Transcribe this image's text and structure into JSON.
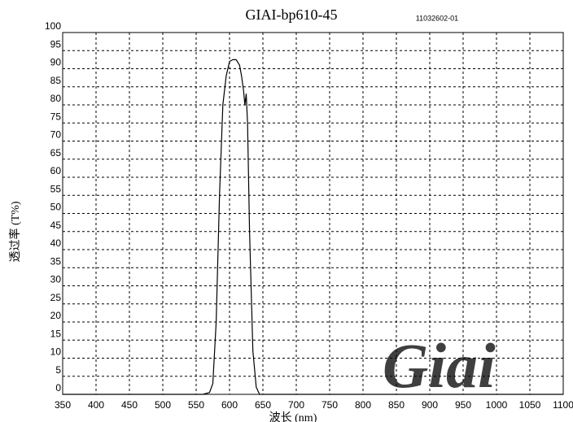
{
  "chart_data": {
    "type": "line",
    "title": "GIAI-bp610-45",
    "subtitle": "11032602-01",
    "x_label": "波长 (nm)",
    "y_label": "透过率 (T%)",
    "watermark": "Giai",
    "x": [
      350,
      560,
      570,
      575,
      580,
      585,
      590,
      595,
      600,
      605,
      610,
      615,
      618,
      621,
      623,
      625,
      627,
      630,
      635,
      640,
      645,
      700,
      1100
    ],
    "values": [
      0,
      0,
      0.5,
      3,
      20,
      55,
      80,
      88,
      92,
      92.5,
      92.5,
      91,
      88,
      84,
      80,
      83,
      75,
      45,
      12,
      2,
      0,
      0,
      0
    ],
    "color": "#000000",
    "xlim": [
      350,
      1100
    ],
    "xticks": [
      350,
      400,
      450,
      500,
      550,
      600,
      650,
      700,
      750,
      800,
      850,
      900,
      950,
      1000,
      1050,
      1100
    ],
    "ylim": [
      0,
      100
    ],
    "yticks": [
      0,
      5,
      10,
      15,
      20,
      25,
      30,
      35,
      40,
      45,
      50,
      55,
      60,
      65,
      70,
      75,
      80,
      85,
      90,
      95,
      100
    ],
    "grid": true
  }
}
